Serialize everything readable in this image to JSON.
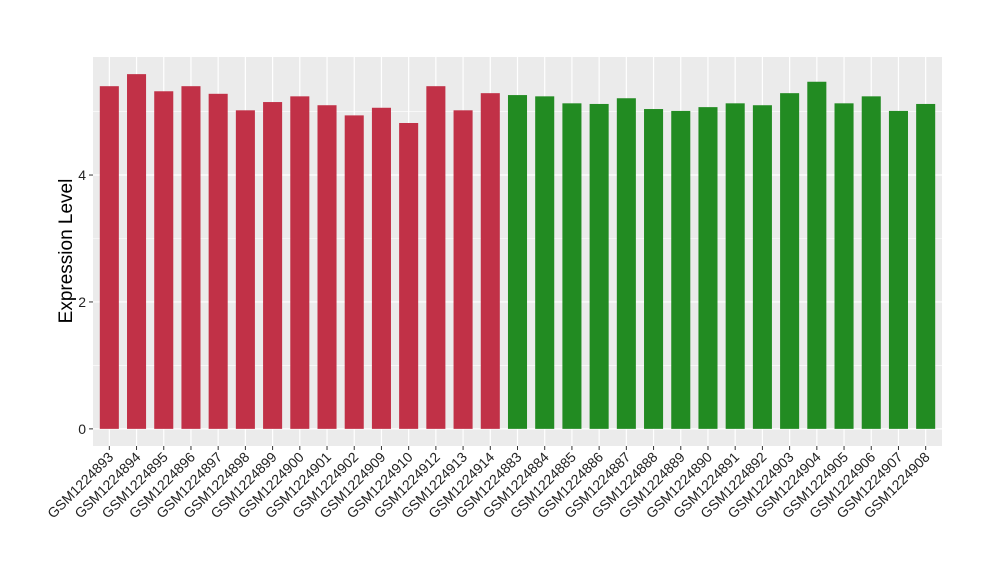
{
  "chart_data": {
    "type": "bar",
    "title": "",
    "xlabel": "",
    "ylabel": "Expression Level",
    "ylim": [
      -0.27,
      5.86
    ],
    "yticks": [
      0,
      2,
      4
    ],
    "grid": true,
    "legend": "none",
    "colors": {
      "group1": "#C13147",
      "group2": "#228B22",
      "panel": "#EBEBEB",
      "grid": "#FFFFFF"
    },
    "categories": [
      "GSM1224893",
      "GSM1224894",
      "GSM1224895",
      "GSM1224896",
      "GSM1224897",
      "GSM1224898",
      "GSM1224899",
      "GSM1224900",
      "GSM1224901",
      "GSM1224902",
      "GSM1224909",
      "GSM1224910",
      "GSM1224912",
      "GSM1224913",
      "GSM1224914",
      "GSM1224883",
      "GSM1224884",
      "GSM1224885",
      "GSM1224886",
      "GSM1224887",
      "GSM1224888",
      "GSM1224889",
      "GSM1224890",
      "GSM1224891",
      "GSM1224892",
      "GSM1224903",
      "GSM1224904",
      "GSM1224905",
      "GSM1224906",
      "GSM1224907",
      "GSM1224908"
    ],
    "values": [
      5.4,
      5.59,
      5.32,
      5.4,
      5.28,
      5.02,
      5.15,
      5.24,
      5.1,
      4.94,
      5.06,
      4.82,
      5.4,
      5.02,
      5.29,
      5.26,
      5.24,
      5.13,
      5.12,
      5.21,
      5.04,
      5.01,
      5.07,
      5.13,
      5.1,
      5.29,
      5.47,
      5.13,
      5.24,
      5.01,
      5.12
    ],
    "groups": [
      1,
      1,
      1,
      1,
      1,
      1,
      1,
      1,
      1,
      1,
      1,
      1,
      1,
      1,
      1,
      2,
      2,
      2,
      2,
      2,
      2,
      2,
      2,
      2,
      2,
      2,
      2,
      2,
      2,
      2,
      2
    ]
  }
}
